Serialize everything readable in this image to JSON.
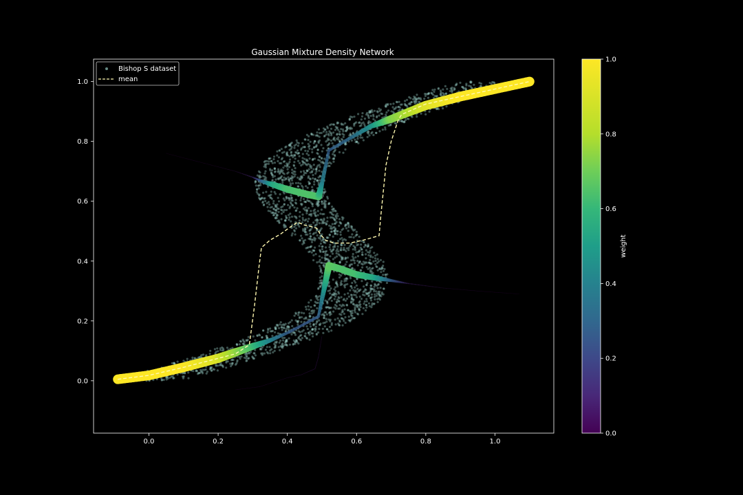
{
  "chart_data": {
    "type": "scatter",
    "title": "Gaussian Mixture Density Network",
    "xlabel": "",
    "ylabel": "",
    "xlim": [
      -0.16,
      1.17
    ],
    "ylim": [
      -0.175,
      1.075
    ],
    "xticks": [
      0.0,
      0.2,
      0.4,
      0.6,
      0.8,
      1.0
    ],
    "yticks": [
      0.0,
      0.2,
      0.4,
      0.6,
      0.8,
      1.0
    ],
    "xtick_labels": [
      "0.0",
      "0.2",
      "0.4",
      "0.6",
      "0.8",
      "1.0"
    ],
    "ytick_labels": [
      "0.0",
      "0.2",
      "0.4",
      "0.6",
      "0.8",
      "1.0"
    ],
    "grid": false,
    "legend": {
      "placement": "top-left",
      "entries": [
        "Bishop S dataset",
        "mean"
      ]
    },
    "colorbar": {
      "label": "weight",
      "colormap": "viridis",
      "range": [
        0.0,
        1.0
      ],
      "ticks": [
        0.0,
        0.2,
        0.4,
        0.6,
        0.8,
        1.0
      ],
      "tick_labels": [
        "0.0",
        "0.2",
        "0.4",
        "0.6",
        "0.8",
        "1.0"
      ]
    },
    "dataset": {
      "name": "Bishop S dataset",
      "color": "#a8e6dc",
      "y_range": [
        0.0,
        1.0
      ]
    },
    "mean": {
      "name": "mean",
      "color": "#fff8b0",
      "style": "dashed",
      "points": [
        [
          -0.09,
          0.005
        ],
        [
          0.0,
          0.018
        ],
        [
          0.1,
          0.045
        ],
        [
          0.2,
          0.075
        ],
        [
          0.25,
          0.09
        ],
        [
          0.29,
          0.12
        ],
        [
          0.305,
          0.25
        ],
        [
          0.318,
          0.38
        ],
        [
          0.325,
          0.445
        ],
        [
          0.35,
          0.47
        ],
        [
          0.38,
          0.49
        ],
        [
          0.41,
          0.515
        ],
        [
          0.43,
          0.53
        ],
        [
          0.45,
          0.52
        ],
        [
          0.47,
          0.515
        ],
        [
          0.485,
          0.51
        ],
        [
          0.495,
          0.49
        ],
        [
          0.51,
          0.47
        ],
        [
          0.535,
          0.46
        ],
        [
          0.58,
          0.46
        ],
        [
          0.62,
          0.47
        ],
        [
          0.665,
          0.485
        ],
        [
          0.67,
          0.55
        ],
        [
          0.685,
          0.72
        ],
        [
          0.7,
          0.8
        ],
        [
          0.72,
          0.87
        ],
        [
          0.73,
          0.89
        ],
        [
          0.8,
          0.925
        ],
        [
          0.9,
          0.95
        ],
        [
          1.0,
          0.975
        ],
        [
          1.1,
          1.0
        ]
      ]
    },
    "components": [
      {
        "points": [
          [
            -0.09,
            0.005
          ],
          [
            0.0,
            0.018
          ],
          [
            0.1,
            0.045
          ],
          [
            0.2,
            0.075
          ],
          [
            0.25,
            0.095
          ],
          [
            0.3,
            0.115
          ],
          [
            0.35,
            0.135
          ],
          [
            0.4,
            0.16
          ],
          [
            0.45,
            0.19
          ],
          [
            0.49,
            0.215
          ],
          [
            0.505,
            0.3
          ],
          [
            0.52,
            0.385
          ],
          [
            0.55,
            0.375
          ],
          [
            0.6,
            0.355
          ],
          [
            0.65,
            0.345
          ],
          [
            0.7,
            0.335
          ],
          [
            0.75,
            0.325
          ],
          [
            0.85,
            0.31
          ],
          [
            0.95,
            0.3
          ],
          [
            1.07,
            0.29
          ]
        ],
        "weights": [
          1.0,
          1.0,
          1.0,
          0.95,
          0.85,
          0.7,
          0.45,
          0.3,
          0.28,
          0.3,
          0.5,
          0.75,
          0.72,
          0.7,
          0.6,
          0.3,
          0.1,
          0.05,
          0.02,
          0.0
        ]
      },
      {
        "points": [
          [
            0.05,
            0.76
          ],
          [
            0.15,
            0.73
          ],
          [
            0.25,
            0.7
          ],
          [
            0.3,
            0.68
          ],
          [
            0.33,
            0.665
          ],
          [
            0.36,
            0.655
          ],
          [
            0.4,
            0.64
          ],
          [
            0.45,
            0.625
          ],
          [
            0.49,
            0.615
          ],
          [
            0.5,
            0.66
          ],
          [
            0.52,
            0.77
          ],
          [
            0.58,
            0.81
          ],
          [
            0.64,
            0.85
          ],
          [
            0.7,
            0.875
          ],
          [
            0.8,
            0.92
          ],
          [
            0.9,
            0.95
          ],
          [
            1.0,
            0.975
          ],
          [
            1.1,
            1.0
          ]
        ],
        "weights": [
          0.0,
          0.02,
          0.05,
          0.12,
          0.35,
          0.6,
          0.7,
          0.72,
          0.72,
          0.45,
          0.3,
          0.35,
          0.5,
          0.8,
          0.95,
          1.0,
          1.0,
          1.0
        ]
      },
      {
        "points": [
          [
            0.25,
            -0.03
          ],
          [
            0.32,
            -0.02
          ],
          [
            0.36,
            -0.005
          ],
          [
            0.4,
            0.01
          ],
          [
            0.44,
            0.02
          ],
          [
            0.48,
            0.04
          ],
          [
            0.49,
            0.08
          ],
          [
            0.5,
            0.15
          ]
        ],
        "weights": [
          0.0,
          0.02,
          0.03,
          0.04,
          0.05,
          0.06,
          0.06,
          0.05
        ]
      }
    ]
  }
}
